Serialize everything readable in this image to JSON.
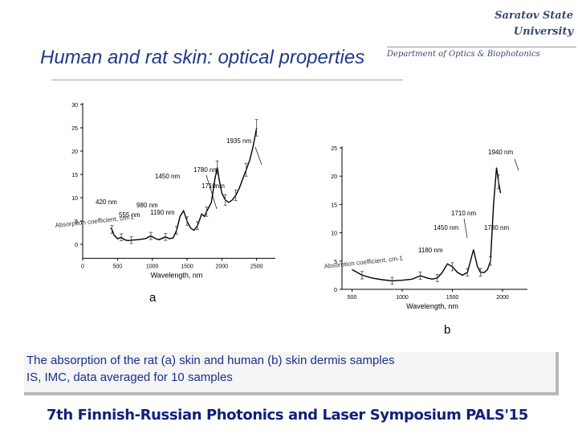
{
  "header": {
    "university_line1": "Saratov State",
    "university_line2": "University",
    "department": "Department of Optics & Biophotonics",
    "slide_title": "Human and rat skin: optical properties"
  },
  "chart_data": [
    {
      "type": "line",
      "panel_label": "a",
      "xlabel": "Wavelength, nm",
      "ylabel": "Absorption coefficient, cm-1",
      "xlim": [
        0,
        2700
      ],
      "ylim": [
        -3,
        30
      ],
      "xticks": [
        "0",
        "500",
        "1000",
        "1500",
        "2000",
        "2500"
      ],
      "yticks": [
        "30",
        "25",
        "20",
        "15",
        "10",
        "5",
        "0"
      ],
      "series": [
        {
          "x": [
            400,
            420,
            450,
            500,
            555,
            600,
            650,
            700,
            800,
            900,
            980,
            1050,
            1100,
            1190,
            1250,
            1300,
            1350,
            1400,
            1450,
            1500,
            1550,
            1600,
            1650,
            1710,
            1750,
            1780,
            1850,
            1900,
            1935,
            1960,
            2000,
            2050,
            2100,
            2150,
            2200,
            2250,
            2300,
            2350,
            2400,
            2450,
            2500
          ],
          "values": [
            3.5,
            3.2,
            2.0,
            1.2,
            1.5,
            1.0,
            0.8,
            0.9,
            1.0,
            1.2,
            1.8,
            1.2,
            1.0,
            1.6,
            1.2,
            1.4,
            3.0,
            6.0,
            7.2,
            5.0,
            3.5,
            3.0,
            4.0,
            6.5,
            6.0,
            7.0,
            9.0,
            14.0,
            16.5,
            14.0,
            11.0,
            9.5,
            9.0,
            9.5,
            10.5,
            12.0,
            14.0,
            16.0,
            18.0,
            21.0,
            25.0
          ]
        }
      ],
      "annotations": [
        "1935 nm",
        "1780 nm",
        "1450 nm",
        "1710nm",
        "980 nm",
        "420 nm",
        "1190 nm",
        "555 nm"
      ]
    },
    {
      "type": "line",
      "panel_label": "b",
      "xlabel": "Wavelength, nm",
      "ylabel": "Absorption coefficient, cm-1",
      "xlim": [
        400,
        2200
      ],
      "ylim": [
        0,
        25
      ],
      "xticks": [
        "500",
        "1000",
        "1500",
        "2000"
      ],
      "yticks": [
        "25",
        "20",
        "15",
        "10",
        "5",
        "0"
      ],
      "series": [
        {
          "x": [
            500,
            600,
            700,
            800,
            900,
            1000,
            1100,
            1180,
            1250,
            1300,
            1350,
            1400,
            1450,
            1500,
            1550,
            1600,
            1650,
            1710,
            1750,
            1780,
            1820,
            1850,
            1880,
            1910,
            1940,
            1960,
            1980
          ],
          "values": [
            3.5,
            2.5,
            2.0,
            1.7,
            1.5,
            1.6,
            1.8,
            2.4,
            2.0,
            1.8,
            2.0,
            3.0,
            4.5,
            4.0,
            3.0,
            2.5,
            3.0,
            7.0,
            4.0,
            3.0,
            3.0,
            3.5,
            5.0,
            15.0,
            21.5,
            19.0,
            17.0
          ]
        }
      ],
      "annotations": [
        "1940 nm",
        "1710 nm",
        "1450 nm",
        "1780 nm",
        "1180 nm"
      ]
    }
  ],
  "caption": {
    "line1": "The absorption of the rat (a) skin and human (b) skin dermis samples",
    "line2": "IS, IMC, data averaged for 10 samples"
  },
  "footer": {
    "text": "7th Finnish-Russian Photonics and Laser Symposium PALS'15"
  }
}
